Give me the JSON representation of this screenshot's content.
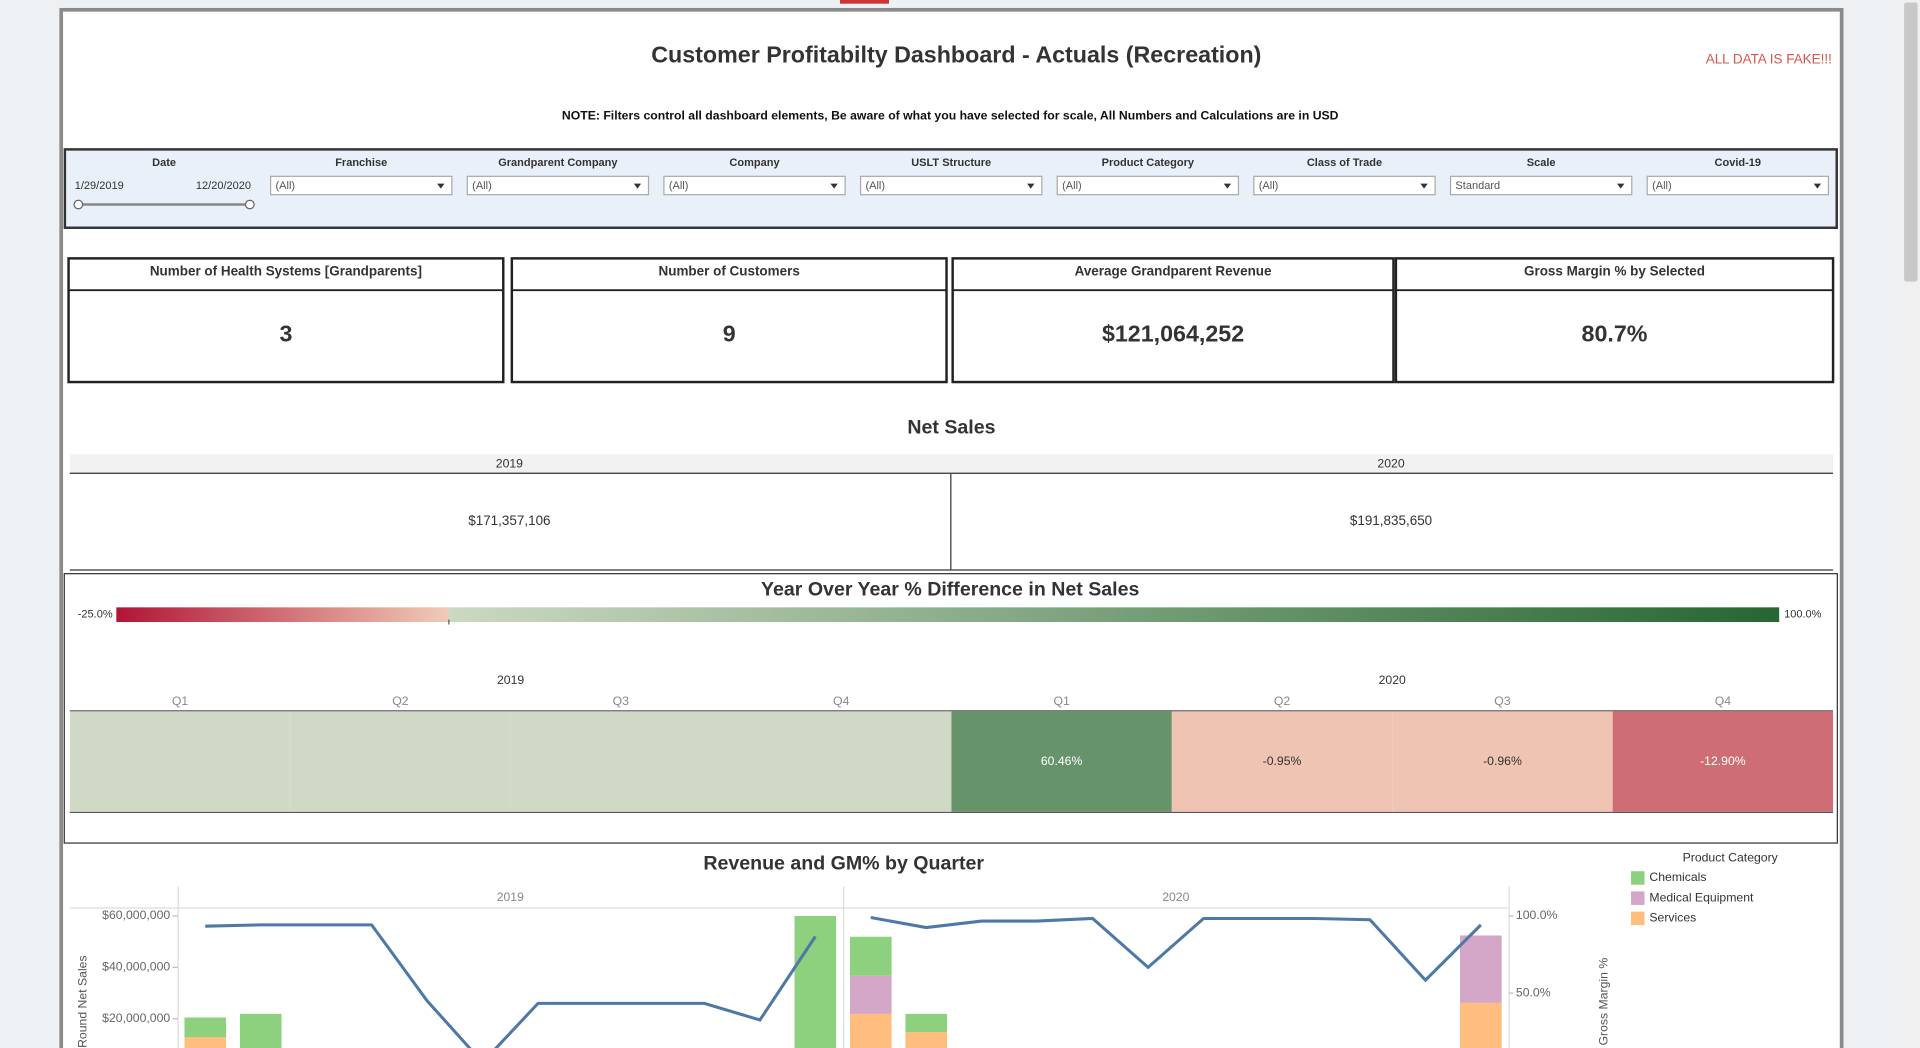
{
  "header": {
    "title": "Customer Profitabilty Dashboard - Actuals (Recreation)",
    "badge": "ALL DATA IS FAKE!!!",
    "note": "NOTE:  Filters control all dashboard elements, Be aware of what you have selected for scale, All Numbers and Calculations are in USD"
  },
  "filters": {
    "date": {
      "label": "Date",
      "start": "1/29/2019",
      "end": "12/20/2020"
    },
    "items": [
      {
        "label": "Franchise",
        "value": "(All)"
      },
      {
        "label": "Grandparent Company",
        "value": "(All)"
      },
      {
        "label": "Company",
        "value": "(All)"
      },
      {
        "label": "USLT Structure",
        "value": "(All)"
      },
      {
        "label": "Product Category",
        "value": "(All)"
      },
      {
        "label": "Class of Trade",
        "value": "(All)"
      },
      {
        "label": "Scale",
        "value": "Standard"
      },
      {
        "label": "Covid-19",
        "value": "(All)"
      }
    ]
  },
  "kpis": [
    {
      "label": "Number of Health Systems [Grandparents]",
      "value": "3"
    },
    {
      "label": "Number of Customers",
      "value": "9"
    },
    {
      "label": "Average Grandparent Revenue",
      "value": "$121,064,252"
    },
    {
      "label": "Gross Margin % by Selected",
      "value": "80.7%"
    }
  ],
  "net_sales": {
    "title": "Net Sales",
    "columns": [
      "2019",
      "2020"
    ],
    "values": [
      "$171,357,106",
      "$191,835,650"
    ]
  },
  "chart_data": [
    {
      "type": "heatmap",
      "title": "Year Over Year % Difference in Net Sales",
      "panels": [
        "2019",
        "2020"
      ],
      "categories": [
        "Q1",
        "Q2",
        "Q3",
        "Q4",
        "Q1",
        "Q2",
        "Q3",
        "Q4"
      ],
      "values": [
        null,
        null,
        null,
        null,
        60.46,
        -0.95,
        -0.96,
        -12.9
      ],
      "value_labels": [
        null,
        null,
        null,
        null,
        "60.46%",
        "-0.95%",
        "-0.96%",
        "-12.90%"
      ],
      "colorlim": [
        -25,
        100
      ],
      "colorticks": [
        {
          "value": -25,
          "label": "-25.0%"
        },
        {
          "value": 100,
          "label": "100.0%"
        }
      ],
      "colors": [
        "#b01535",
        "#f1cbb8",
        "#cbd9c1",
        "#266633"
      ],
      "null_color": "#cfd9c6"
    },
    {
      "type": "combo",
      "title": "Revenue and GM% by Quarter",
      "panels": [
        "2019",
        "2020"
      ],
      "categories": [
        null,
        null,
        null,
        null,
        null,
        null,
        null,
        null,
        null,
        null,
        null,
        null,
        null,
        null,
        null,
        null,
        null,
        null,
        null,
        null,
        null,
        null,
        null,
        null
      ],
      "ylabel": "Round Net Sales",
      "y2label": "Gross Margin %",
      "ylim": [
        0,
        60000000
      ],
      "yticks": [
        {
          "value": 20000000,
          "label": "$20,000,000"
        },
        {
          "value": 40000000,
          "label": "$40,000,000"
        },
        {
          "value": 60000000,
          "label": "$60,000,000"
        }
      ],
      "y2lim": [
        0,
        100
      ],
      "y2ticks": [
        {
          "value": 50,
          "label": "50.0%"
        },
        {
          "value": 100,
          "label": "100.0%"
        }
      ],
      "legend_title": "Product Category",
      "legend": "right",
      "series": [
        {
          "name": "Chemicals",
          "color": "#8dd17f",
          "values": [
            7600000,
            21900000,
            null,
            null,
            null,
            null,
            null,
            null,
            null,
            null,
            null,
            60000000,
            15200000,
            7100000,
            null,
            null,
            null,
            null,
            null,
            null,
            null,
            null,
            null,
            null
          ]
        },
        {
          "name": "Medical Equipment",
          "color": "#d4a6c8",
          "values": [
            null,
            null,
            null,
            null,
            null,
            null,
            null,
            null,
            null,
            null,
            null,
            null,
            14800000,
            null,
            null,
            null,
            null,
            null,
            null,
            null,
            null,
            null,
            null,
            26200000
          ]
        },
        {
          "name": "Services",
          "color": "#ffbe7d",
          "values": [
            12900000,
            null,
            null,
            null,
            null,
            null,
            null,
            null,
            null,
            null,
            null,
            null,
            21900000,
            14800000,
            null,
            null,
            null,
            null,
            null,
            null,
            null,
            null,
            null,
            26200000
          ]
        },
        {
          "type": "line",
          "axis": "y2",
          "color": "#4e79a7",
          "values": [
            93.3,
            94.2,
            94.2,
            94.2,
            45,
            5,
            43.3,
            43.3,
            43.3,
            43.3,
            32.5,
            86.7,
            99,
            92.5,
            96.7,
            96.7,
            98.3,
            66.7,
            98.3,
            98.3,
            98.3,
            97.5,
            58.3,
            94.2
          ]
        }
      ]
    }
  ]
}
